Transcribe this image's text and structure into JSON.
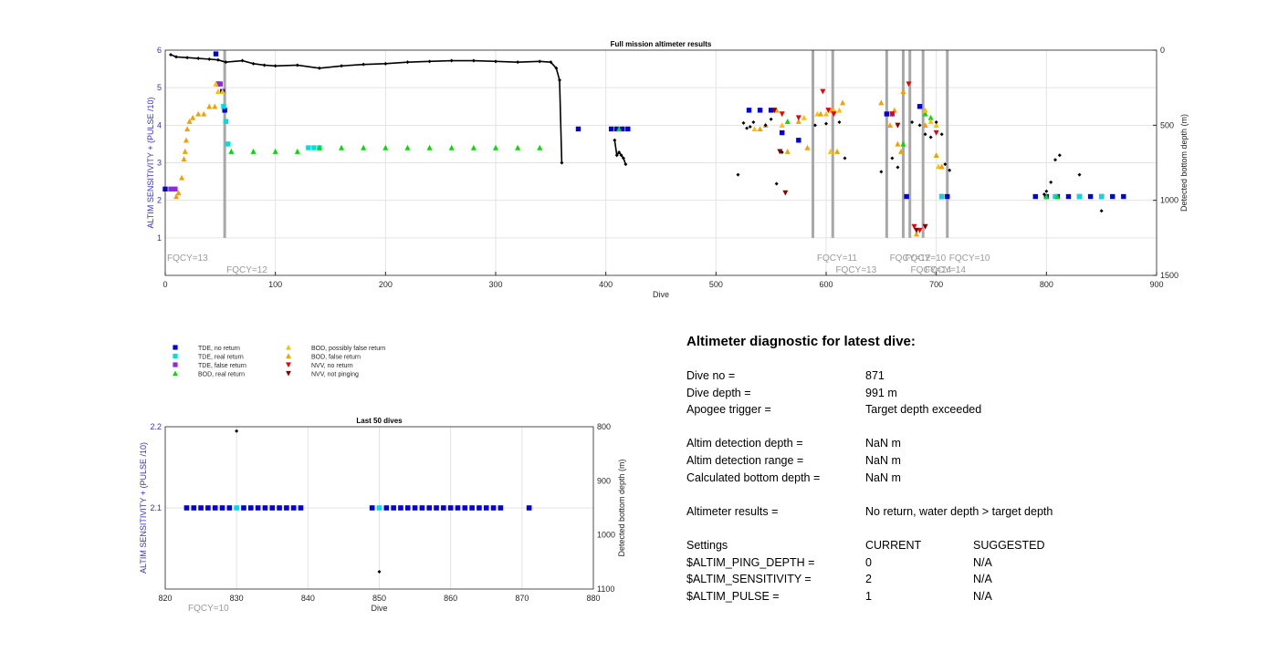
{
  "chart_data": [
    {
      "type": "scatter",
      "title": "Full mission altimeter results",
      "xlabel": "Dive",
      "ylabel_left": "ALTIM SENSITIVITY + (PULSE /10)",
      "ylabel_right": "Detected bottom depth (m)",
      "xlim": [
        0,
        900
      ],
      "ylim_left": [
        0,
        6
      ],
      "ylim_right": [
        1500,
        0
      ],
      "x_ticks": [
        "0",
        "100",
        "200",
        "300",
        "400",
        "500",
        "600",
        "700",
        "800",
        "900"
      ],
      "y_left_ticks": [
        "1",
        "2",
        "3",
        "4",
        "5",
        "6"
      ],
      "y_right_ticks": [
        "0",
        "500",
        "1000",
        "1500"
      ],
      "grid": true,
      "fqcy_changes": [
        {
          "dive": 0,
          "label": "FQCY=13",
          "row": 0
        },
        {
          "dive": 54,
          "label": "FQCY=12",
          "row": 1
        },
        {
          "dive": 590,
          "label": "FQCY=11",
          "row": 0
        },
        {
          "dive": 607,
          "label": "FQCY=13",
          "row": 1
        },
        {
          "dive": 656,
          "label": "FQCY=12",
          "row": 0
        },
        {
          "dive": 670,
          "label": "FQCY=10",
          "row": 0
        },
        {
          "dive": 675,
          "label": "FQCY=14",
          "row": 1
        },
        {
          "dive": 688,
          "label": "FQCY=14",
          "row": 1
        },
        {
          "dive": 710,
          "label": "FQCY=10",
          "row": 0
        }
      ],
      "fqcy_lines_dives": [
        54,
        588,
        606,
        655,
        670,
        676,
        688,
        710
      ],
      "bottom_depth_series": [
        {
          "x": [
            5,
            10,
            20,
            30,
            40,
            48,
            55,
            70,
            80,
            90,
            100,
            120,
            140,
            160,
            180,
            200,
            220,
            240,
            260,
            280,
            300,
            320,
            340,
            350,
            355,
            358,
            360
          ],
          "y": [
            30,
            45,
            50,
            55,
            60,
            65,
            80,
            70,
            90,
            100,
            105,
            100,
            120,
            105,
            95,
            90,
            80,
            75,
            70,
            70,
            75,
            80,
            75,
            80,
            120,
            200,
            750
          ]
        },
        {
          "x": [
            408,
            410,
            412,
            414,
            416,
            418
          ],
          "y": [
            600,
            700,
            680,
            700,
            720,
            760
          ]
        }
      ],
      "bottom_depth_points": [
        {
          "x": 525,
          "y": 485
        },
        {
          "x": 528,
          "y": 520
        },
        {
          "x": 531,
          "y": 510
        },
        {
          "x": 534,
          "y": 480
        },
        {
          "x": 520,
          "y": 830
        },
        {
          "x": 545,
          "y": 500
        },
        {
          "x": 550,
          "y": 460
        },
        {
          "x": 555,
          "y": 890
        },
        {
          "x": 560,
          "y": 680
        },
        {
          "x": 590,
          "y": 500
        },
        {
          "x": 600,
          "y": 490
        },
        {
          "x": 612,
          "y": 480
        },
        {
          "x": 617,
          "y": 720
        },
        {
          "x": 650,
          "y": 810
        },
        {
          "x": 660,
          "y": 720
        },
        {
          "x": 665,
          "y": 780
        },
        {
          "x": 678,
          "y": 480
        },
        {
          "x": 685,
          "y": 500
        },
        {
          "x": 690,
          "y": 560
        },
        {
          "x": 695,
          "y": 580
        },
        {
          "x": 700,
          "y": 480
        },
        {
          "x": 705,
          "y": 560
        },
        {
          "x": 708,
          "y": 760
        },
        {
          "x": 712,
          "y": 800
        },
        {
          "x": 798,
          "y": 960
        },
        {
          "x": 800,
          "y": 940
        },
        {
          "x": 804,
          "y": 880
        },
        {
          "x": 808,
          "y": 730
        },
        {
          "x": 812,
          "y": 700
        },
        {
          "x": 830,
          "y": 830
        },
        {
          "x": 850,
          "y": 1070
        }
      ],
      "series": [
        {
          "name": "TDE, no return",
          "marker": "square",
          "color": "#0000dd",
          "points": [
            [
              0,
              2.3
            ],
            [
              46,
              5.9
            ],
            [
              48,
              5.1
            ],
            [
              52,
              4.9
            ],
            [
              54,
              4.4
            ],
            [
              375,
              3.9
            ],
            [
              405,
              3.9
            ],
            [
              410,
              3.9
            ],
            [
              415,
              3.9
            ],
            [
              420,
              3.9
            ],
            [
              530,
              4.4
            ],
            [
              540,
              4.4
            ],
            [
              550,
              4.4
            ],
            [
              560,
              3.8
            ],
            [
              575,
              3.6
            ],
            [
              655,
              4.3
            ],
            [
              673,
              2.1
            ],
            [
              685,
              4.5
            ],
            [
              705,
              2.1
            ],
            [
              710,
              2.1
            ],
            [
              790,
              2.1
            ],
            [
              800,
              2.1
            ],
            [
              810,
              2.1
            ],
            [
              820,
              2.1
            ],
            [
              830,
              2.1
            ],
            [
              840,
              2.1
            ],
            [
              850,
              2.1
            ],
            [
              860,
              2.1
            ],
            [
              870,
              2.1
            ]
          ]
        },
        {
          "name": "TDE, real return",
          "marker": "square",
          "color": "#00dddd",
          "points": [
            [
              53,
              4.5
            ],
            [
              55,
              4.1
            ],
            [
              57,
              3.5
            ],
            [
              130,
              3.4
            ],
            [
              135,
              3.4
            ],
            [
              140,
              3.4
            ],
            [
              705,
              2.1
            ],
            [
              808,
              2.1
            ],
            [
              830,
              2.1
            ],
            [
              850,
              2.1
            ]
          ]
        },
        {
          "name": "TDE, false return",
          "marker": "square",
          "color": "#8a2be2",
          "points": [
            [
              5,
              2.3
            ],
            [
              9,
              2.3
            ],
            [
              48,
              5.1
            ],
            [
              50,
              5.1
            ],
            [
              660,
              4.3
            ]
          ]
        },
        {
          "name": "BOD, real return",
          "marker": "triangle",
          "color": "#00dd00",
          "points": [
            [
              60,
              3.3
            ],
            [
              80,
              3.3
            ],
            [
              100,
              3.3
            ],
            [
              120,
              3.3
            ],
            [
              140,
              3.4
            ],
            [
              160,
              3.4
            ],
            [
              180,
              3.4
            ],
            [
              200,
              3.4
            ],
            [
              220,
              3.4
            ],
            [
              240,
              3.4
            ],
            [
              260,
              3.4
            ],
            [
              280,
              3.4
            ],
            [
              300,
              3.4
            ],
            [
              320,
              3.4
            ],
            [
              340,
              3.4
            ],
            [
              412,
              3.9
            ],
            [
              565,
              4.1
            ],
            [
              670,
              3.5
            ],
            [
              690,
              4.3
            ],
            [
              695,
              4.2
            ],
            [
              800,
              2.1
            ],
            [
              810,
              2.1
            ]
          ]
        },
        {
          "name": "BOD, possibly false return",
          "marker": "triangle",
          "color": "#ffc000",
          "points": [
            [
              12,
              2.2
            ],
            [
              46,
              5.1
            ],
            [
              48,
              4.9
            ],
            [
              52,
              4.9
            ],
            [
              535,
              3.9
            ],
            [
              560,
              4.0
            ],
            [
              580,
              4.2
            ],
            [
              592,
              4.3
            ],
            [
              600,
              4.3
            ],
            [
              604,
              3.3
            ],
            [
              607,
              4.4
            ],
            [
              612,
              4.4
            ],
            [
              690,
              4.4
            ],
            [
              695,
              4.1
            ],
            [
              700,
              4.0
            ],
            [
              702,
              2.9
            ]
          ]
        },
        {
          "name": "BOD, false return",
          "marker": "triangle",
          "color": "#f5a000",
          "points": [
            [
              10,
              2.1
            ],
            [
              12,
              2.2
            ],
            [
              15,
              2.6
            ],
            [
              17,
              3.1
            ],
            [
              18,
              3.3
            ],
            [
              19,
              3.6
            ],
            [
              20,
              3.9
            ],
            [
              22,
              4.1
            ],
            [
              25,
              4.2
            ],
            [
              30,
              4.3
            ],
            [
              35,
              4.3
            ],
            [
              40,
              4.5
            ],
            [
              45,
              4.5
            ],
            [
              540,
              3.9
            ],
            [
              545,
              4.0
            ],
            [
              555,
              4.4
            ],
            [
              565,
              3.3
            ],
            [
              575,
              4.1
            ],
            [
              583,
              3.4
            ],
            [
              595,
              4.3
            ],
            [
              605,
              4.4
            ],
            [
              610,
              3.3
            ],
            [
              615,
              4.6
            ],
            [
              650,
              4.6
            ],
            [
              658,
              4.0
            ],
            [
              662,
              4.4
            ],
            [
              665,
              3.5
            ],
            [
              668,
              3.3
            ],
            [
              670,
              4.9
            ],
            [
              682,
              1.1
            ],
            [
              690,
              4.0
            ],
            [
              700,
              3.2
            ],
            [
              705,
              2.9
            ]
          ]
        },
        {
          "name": "NVV, no return",
          "marker": "triangle-down",
          "color": "#ee0000",
          "points": [
            [
              560,
              4.3
            ],
            [
              575,
              4.2
            ],
            [
              597,
              4.9
            ],
            [
              602,
              4.4
            ],
            [
              607,
              4.3
            ],
            [
              660,
              4.3
            ],
            [
              675,
              5.1
            ],
            [
              680,
              1.3
            ],
            [
              685,
              1.2
            ],
            [
              700,
              3.8
            ]
          ]
        },
        {
          "name": "NVV, not pinging",
          "marker": "triangle-down",
          "color": "#8b0000",
          "points": [
            [
              553,
              4.4
            ],
            [
              558,
              3.3
            ],
            [
              563,
              2.2
            ],
            [
              665,
              4.0
            ],
            [
              682,
              1.2
            ],
            [
              690,
              1.3
            ]
          ]
        }
      ]
    },
    {
      "type": "scatter",
      "title": "Last 50 dives",
      "xlabel": "Dive",
      "ylabel_left": "ALTIM SENSITIVITY + (PULSE /10)",
      "ylabel_right": "Detected bottom depth (m)",
      "xlim": [
        820,
        880
      ],
      "ylim_left": [
        2.0,
        2.2
      ],
      "ylim_right": [
        1100,
        800
      ],
      "x_ticks": [
        "820",
        "830",
        "840",
        "850",
        "860",
        "870",
        "880"
      ],
      "y_left_ticks": [
        "2.1",
        "2.2"
      ],
      "y_right_ticks": [
        "800",
        "900",
        "1000",
        "1100"
      ],
      "grid": true,
      "fqcy_label": "FQCY=10",
      "series": [
        {
          "name": "TDE, no return",
          "marker": "square",
          "color": "#0000dd",
          "x": [
            823,
            824,
            825,
            826,
            827,
            828,
            829,
            831,
            832,
            833,
            834,
            835,
            836,
            837,
            838,
            839,
            849,
            851,
            852,
            853,
            854,
            855,
            856,
            857,
            858,
            859,
            860,
            861,
            862,
            863,
            864,
            865,
            866,
            867,
            871
          ],
          "y_all": 2.1
        },
        {
          "name": "TDE, real return",
          "marker": "square",
          "color": "#00dddd",
          "x": [
            830,
            850
          ],
          "y_all": 2.1
        }
      ],
      "bottom_depth_points": [
        {
          "x": 830,
          "y": 808
        },
        {
          "x": 850,
          "y": 1068
        }
      ]
    }
  ],
  "legend": [
    {
      "label": "TDE, no return",
      "marker": "square",
      "color": "#0000dd"
    },
    {
      "label": "TDE, real return",
      "marker": "square",
      "color": "#00dddd"
    },
    {
      "label": "TDE, false return",
      "marker": "square",
      "color": "#8a2be2"
    },
    {
      "label": "BOD, real return",
      "marker": "triangle",
      "color": "#00dd00"
    },
    {
      "label": "BOD, possibly false return",
      "marker": "triangle",
      "color": "#ffc000"
    },
    {
      "label": "BOD, false return",
      "marker": "triangle",
      "color": "#f5a000"
    },
    {
      "label": "NVV, no return",
      "marker": "triangle-down",
      "color": "#ee0000"
    },
    {
      "label": "NVV, not pinging",
      "marker": "triangle-down",
      "color": "#8b0000"
    }
  ],
  "diagnostic": {
    "title": "Altimeter diagnostic for latest dive:",
    "dive_no_label": "Dive no =",
    "dive_no": "871",
    "dive_depth_label": "Dive depth =",
    "dive_depth": "991 m",
    "apogee_label": "Apogee trigger =",
    "apogee": "Target depth exceeded",
    "detect_depth_label": "Altim detection depth =",
    "detect_depth": "NaN m",
    "detect_range_label": "Altim detection range =",
    "detect_range": "NaN m",
    "calc_depth_label": "Calculated bottom depth =",
    "calc_depth": "NaN m",
    "results_label": "Altimeter results =",
    "results": "No return, water depth > target depth",
    "settings_label": "Settings",
    "current_label": "CURRENT",
    "suggested_label": "SUGGESTED",
    "ping_depth_label": "$ALTIM_PING_DEPTH =",
    "ping_depth_current": "0",
    "ping_depth_suggested": "N/A",
    "sensitivity_label": "$ALTIM_SENSITIVITY =",
    "sensitivity_current": "2",
    "sensitivity_suggested": "N/A",
    "pulse_label": "$ALTIM_PULSE =",
    "pulse_current": "1",
    "pulse_suggested": "N/A"
  }
}
